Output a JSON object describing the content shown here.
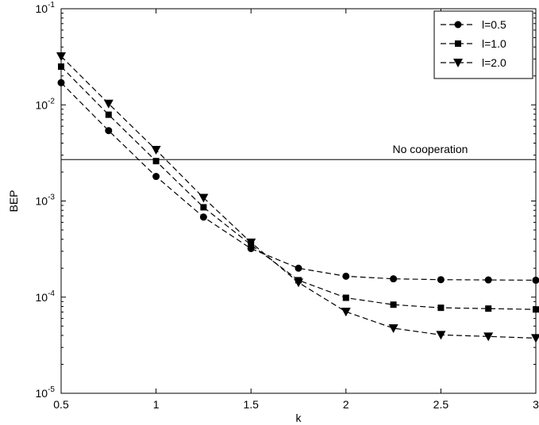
{
  "chart_data": {
    "type": "line",
    "title": "",
    "xlabel": "k",
    "ylabel": "BEP",
    "xlim": [
      0.5,
      3
    ],
    "ylim": [
      1e-05,
      0.1
    ],
    "yscale": "log",
    "grid": false,
    "legend_position": "top-right",
    "x_ticks": [
      "0.5",
      "1",
      "1.5",
      "2",
      "2.5",
      "3"
    ],
    "y_ticks": [
      {
        "base": "10",
        "exp": "-5"
      },
      {
        "base": "10",
        "exp": "-4"
      },
      {
        "base": "10",
        "exp": "-3"
      },
      {
        "base": "10",
        "exp": "-2"
      },
      {
        "base": "10",
        "exp": "-1"
      }
    ],
    "x": [
      0.5,
      0.75,
      1.0,
      1.25,
      1.5,
      1.75,
      2.0,
      2.25,
      2.5,
      2.75,
      3.0
    ],
    "series": [
      {
        "name": "l=0.5",
        "marker": "circle",
        "values": [
          0.017,
          0.0054,
          0.0018,
          0.00068,
          0.00032,
          0.0002,
          0.000165,
          0.000155,
          0.000152,
          0.000151,
          0.00015
        ]
      },
      {
        "name": "l=1.0",
        "marker": "square",
        "values": [
          0.025,
          0.0079,
          0.0026,
          0.00086,
          0.00035,
          0.00015,
          9.85e-05,
          8.35e-05,
          7.75e-05,
          7.6e-05,
          7.45e-05
        ]
      },
      {
        "name": "l=2.0",
        "marker": "triangle-down",
        "values": [
          0.032,
          0.0103,
          0.0034,
          0.00108,
          0.00037,
          0.000142,
          7.05e-05,
          4.75e-05,
          4.05e-05,
          3.9e-05,
          3.75e-05
        ]
      }
    ],
    "reference_line": {
      "label": "No cooperation",
      "value": 0.0027
    }
  }
}
